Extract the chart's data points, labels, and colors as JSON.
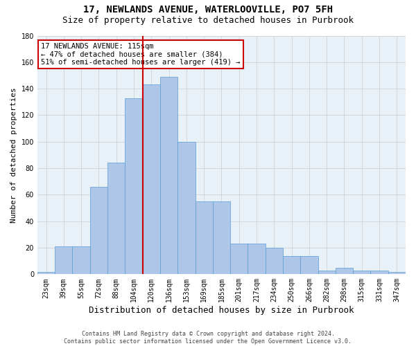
{
  "title1": "17, NEWLANDS AVENUE, WATERLOOVILLE, PO7 5FH",
  "title2": "Size of property relative to detached houses in Purbrook",
  "xlabel": "Distribution of detached houses by size in Purbrook",
  "ylabel": "Number of detached properties",
  "categories": [
    "23sqm",
    "39sqm",
    "55sqm",
    "72sqm",
    "88sqm",
    "104sqm",
    "120sqm",
    "136sqm",
    "153sqm",
    "169sqm",
    "185sqm",
    "201sqm",
    "217sqm",
    "234sqm",
    "250sqm",
    "266sqm",
    "282sqm",
    "298sqm",
    "315sqm",
    "331sqm",
    "347sqm"
  ],
  "values": [
    2,
    21,
    21,
    66,
    84,
    133,
    143,
    149,
    100,
    55,
    55,
    23,
    23,
    20,
    14,
    14,
    3,
    5,
    3,
    3,
    2
  ],
  "bar_color": "#aec6e8",
  "bar_edge_color": "#5b9bd5",
  "vline_x": 6.0,
  "vline_color": "#cc0000",
  "annotation_text": "17 NEWLANDS AVENUE: 115sqm\n← 47% of detached houses are smaller (384)\n51% of semi-detached houses are larger (419) →",
  "annotation_box_color": "#ffffff",
  "annotation_box_edge": "#cc0000",
  "ylim": [
    0,
    180
  ],
  "yticks": [
    0,
    20,
    40,
    60,
    80,
    100,
    120,
    140,
    160,
    180
  ],
  "grid_color": "#cccccc",
  "bg_color": "#e8f0f8",
  "footnote": "Contains HM Land Registry data © Crown copyright and database right 2024.\nContains public sector information licensed under the Open Government Licence v3.0.",
  "title1_fontsize": 10,
  "title2_fontsize": 9,
  "xlabel_fontsize": 9,
  "ylabel_fontsize": 8,
  "tick_fontsize": 7,
  "annotation_fontsize": 7.5,
  "footnote_fontsize": 6
}
